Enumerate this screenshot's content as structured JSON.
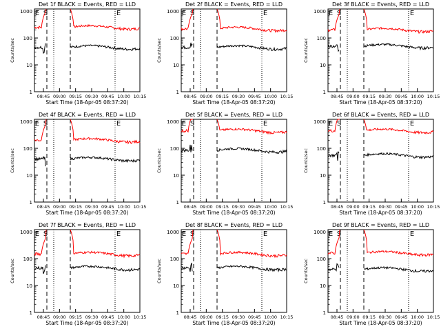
{
  "colors": {
    "events": "#000000",
    "lld": "#ff0000",
    "axes": "#000000",
    "background": "#ffffff"
  },
  "chart_data": [
    {
      "type": "line",
      "title": "Det 1f BLACK = Events, RED = LLD",
      "ylabel": "Counts/sec",
      "xlabel": "Start Time (18-Apr-05 08:37:20)",
      "y_scale": "log",
      "ylim": [
        1,
        1200
      ],
      "yticks": [
        "1",
        "10",
        "100",
        "1000"
      ],
      "xticks": [
        "08:45",
        "09:00",
        "09:15",
        "09:30",
        "09:45",
        "10:00",
        "10:15"
      ],
      "markers": [
        "E",
        "S",
        "E"
      ],
      "series": [
        {
          "values": {
            "lld_level": 250,
            "events_level": 45
          }
        }
      ]
    },
    {
      "type": "line",
      "title": "Det 2f BLACK = Events, RED = LLD",
      "ylabel": "Counts/sec",
      "xlabel": "Start Time (18-Apr-05 08:37:20)",
      "y_scale": "log",
      "ylim": [
        1,
        1200
      ],
      "yticks": [
        "1",
        "10",
        "100",
        "1000"
      ],
      "xticks": [
        "08:45",
        "09:00",
        "09:15",
        "09:30",
        "09:45",
        "10:00",
        "10:15"
      ],
      "markers": [
        "E",
        "S",
        "E"
      ],
      "series": [
        {
          "values": {
            "lld_level": 220,
            "events_level": 45
          }
        }
      ]
    },
    {
      "type": "line",
      "title": "Det 3f BLACK = Events, RED = LLD",
      "ylabel": "Counts/sec",
      "xlabel": "Start Time (18-Apr-05 08:37:20)",
      "y_scale": "log",
      "ylim": [
        1,
        1200
      ],
      "yticks": [
        "1",
        "10",
        "100",
        "1000"
      ],
      "xticks": [
        "08:45",
        "09:00",
        "09:15",
        "09:30",
        "09:45",
        "10:00",
        "10:15"
      ],
      "markers": [
        "E",
        "S",
        "E"
      ],
      "series": [
        {
          "values": {
            "lld_level": 200,
            "events_level": 50
          }
        }
      ]
    },
    {
      "type": "line",
      "title": "Det 4f BLACK = Events, RED = LLD",
      "ylabel": "Counts/sec",
      "xlabel": "Start Time (18-Apr-05 08:37:20)",
      "y_scale": "log",
      "ylim": [
        1,
        1200
      ],
      "yticks": [
        "1",
        "10",
        "100",
        "1000"
      ],
      "xticks": [
        "08:45",
        "09:00",
        "09:15",
        "09:30",
        "09:45",
        "10:00",
        "10:15"
      ],
      "markers": [
        "E",
        "S",
        "E"
      ],
      "series": [
        {
          "values": {
            "lld_level": 200,
            "events_level": 40
          }
        }
      ]
    },
    {
      "type": "line",
      "title": "Det 5f BLACK = Events, RED = LLD",
      "ylabel": "Counts/sec",
      "xlabel": "Start Time (18-Apr-05 08:37:20)",
      "y_scale": "log",
      "ylim": [
        1,
        1200
      ],
      "yticks": [
        "1",
        "10",
        "100",
        "1000"
      ],
      "xticks": [
        "08:45",
        "09:00",
        "09:15",
        "09:30",
        "09:45",
        "10:00",
        "10:15"
      ],
      "markers": [
        "E",
        "S",
        "E"
      ],
      "series": [
        {
          "values": {
            "lld_level": 450,
            "events_level": 85
          }
        }
      ]
    },
    {
      "type": "line",
      "title": "Det 6f BLACK = Events, RED = LLD",
      "ylabel": "Counts/sec",
      "xlabel": "Start Time (18-Apr-05 08:37:20)",
      "y_scale": "log",
      "ylim": [
        1,
        1200
      ],
      "yticks": [
        "1",
        "10",
        "100",
        "1000"
      ],
      "xticks": [
        "08:45",
        "09:00",
        "09:15",
        "09:30",
        "09:45",
        "10:00",
        "10:15"
      ],
      "markers": [
        "E",
        "S",
        "E"
      ],
      "series": [
        {
          "values": {
            "lld_level": 450,
            "events_level": 55
          }
        }
      ]
    },
    {
      "type": "line",
      "title": "Det 7f BLACK = Events, RED = LLD",
      "ylabel": "Counts/sec",
      "xlabel": "Start Time (18-Apr-05 08:37:20)",
      "y_scale": "log",
      "ylim": [
        1,
        1200
      ],
      "yticks": [
        "1",
        "10",
        "100",
        "1000"
      ],
      "xticks": [
        "08:45",
        "09:00",
        "09:15",
        "09:30",
        "09:45",
        "10:00",
        "10:15"
      ],
      "markers": [
        "E",
        "S",
        "E"
      ],
      "series": [
        {
          "values": {
            "lld_level": 150,
            "events_level": 45
          }
        }
      ]
    },
    {
      "type": "line",
      "title": "Det 8f BLACK = Events, RED = LLD",
      "ylabel": "Counts/sec",
      "xlabel": "Start Time (18-Apr-05 08:37:20)",
      "y_scale": "log",
      "ylim": [
        1,
        1200
      ],
      "yticks": [
        "1",
        "10",
        "100",
        "1000"
      ],
      "xticks": [
        "08:45",
        "09:00",
        "09:15",
        "09:30",
        "09:45",
        "10:00",
        "10:15"
      ],
      "markers": [
        "E",
        "S",
        "E"
      ],
      "series": [
        {
          "values": {
            "lld_level": 150,
            "events_level": 45
          }
        }
      ]
    },
    {
      "type": "line",
      "title": "Det 9f BLACK = Events, RED = LLD",
      "ylabel": "Counts/sec",
      "xlabel": "Start Time (18-Apr-05 08:37:20)",
      "y_scale": "log",
      "ylim": [
        1,
        1200
      ],
      "yticks": [
        "1",
        "10",
        "100",
        "1000"
      ],
      "xticks": [
        "08:45",
        "09:00",
        "09:15",
        "09:30",
        "09:45",
        "10:00",
        "10:15"
      ],
      "markers": [
        "E",
        "S",
        "E"
      ],
      "series": [
        {
          "values": {
            "lld_level": 160,
            "events_level": 40
          }
        }
      ]
    }
  ]
}
